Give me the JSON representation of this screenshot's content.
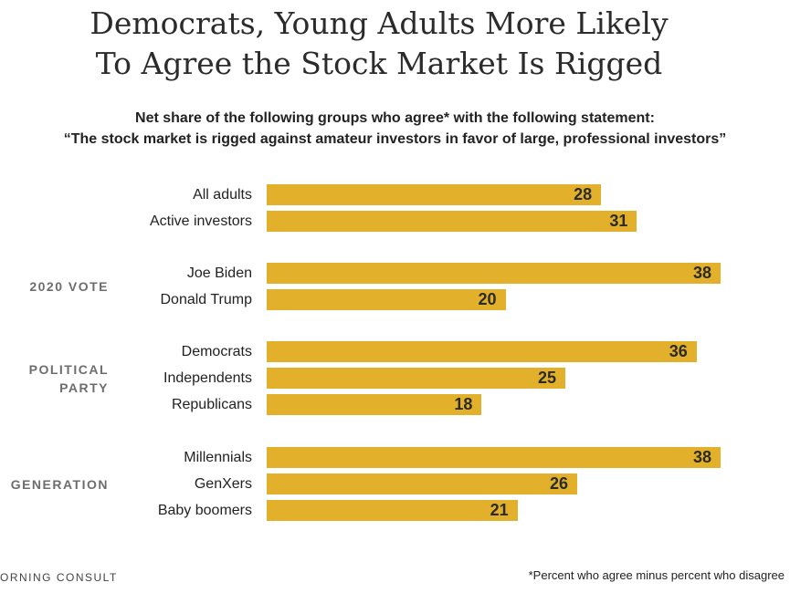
{
  "title_line1": "Democrats, Young Adults More Likely",
  "title_line2": "To Agree the Stock Market Is Rigged",
  "subtitle_line1": "Net share of the following groups who agree* with the following statement:",
  "subtitle_line2": "“The stock market is rigged against amateur investors in favor of large, professional investors”",
  "footnote": "*Percent who agree minus percent who disagree",
  "brand": "ORNING CONSULT",
  "colors": {
    "bar": "#e2b02b",
    "group_label": "#6d6d6d"
  },
  "chart_data": {
    "type": "bar",
    "orientation": "horizontal",
    "xlim": [
      0,
      38
    ],
    "groups": [
      {
        "label": "",
        "categories": [
          "All adults",
          "Active investors"
        ],
        "values": [
          28,
          31
        ]
      },
      {
        "label": "2020 VOTE",
        "categories": [
          "Joe Biden",
          "Donald Trump"
        ],
        "values": [
          38,
          20
        ]
      },
      {
        "label": "POLITICAL PARTY",
        "categories": [
          "Democrats",
          "Independents",
          "Republicans"
        ],
        "values": [
          36,
          25,
          18
        ]
      },
      {
        "label": "GENERATION",
        "categories": [
          "Millennials",
          "GenXers",
          "Baby boomers"
        ],
        "values": [
          38,
          26,
          21
        ]
      }
    ]
  }
}
